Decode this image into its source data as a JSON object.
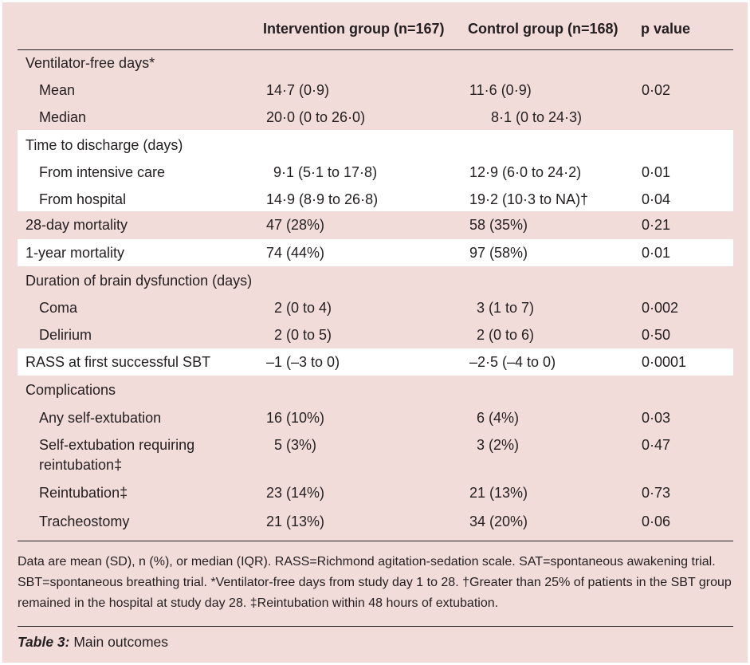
{
  "table": {
    "columns": [
      "",
      "Intervention group (n=167)",
      "Control group (n=168)",
      "p value"
    ],
    "rows": [
      {
        "label": "Ventilator-free days*",
        "intervention": "",
        "control": "",
        "p": ""
      },
      {
        "label": "Mean",
        "intervention": "14·7 (0·9)",
        "control": "11·6 (0·9)",
        "p": "0·02"
      },
      {
        "label": "Median",
        "intervention": "20·0 (0 to 26·0)",
        "control": "8·1 (0 to 24·3)",
        "p": ""
      },
      {
        "label": "Time to discharge (days)",
        "intervention": "",
        "control": "",
        "p": ""
      },
      {
        "label": "From intensive care",
        "intervention": "9·1 (5·1 to 17·8)",
        "control": "12·9 (6·0 to 24·2)",
        "p": "0·01"
      },
      {
        "label": "From hospital",
        "intervention": "14·9 (8·9 to 26·8)",
        "control": "19·2 (10·3 to NA)†",
        "p": "0·04"
      },
      {
        "label": "28-day mortality",
        "intervention": "47 (28%)",
        "control": "58 (35%)",
        "p": "0·21"
      },
      {
        "label": "1-year mortality",
        "intervention": "74 (44%)",
        "control": "97 (58%)",
        "p": "0·01"
      },
      {
        "label": "Duration of brain dysfunction (days)",
        "intervention": "",
        "control": "",
        "p": ""
      },
      {
        "label": "Coma",
        "intervention": "2 (0 to 4)",
        "control": "3 (1 to 7)",
        "p": "0·002"
      },
      {
        "label": "Delirium",
        "intervention": "2 (0 to 5)",
        "control": "2 (0 to 6)",
        "p": "0·50"
      },
      {
        "label": "RASS at first successful SBT",
        "intervention": "–1 (–3 to 0)",
        "control": "–2·5 (–4 to 0)",
        "p": "0·0001"
      },
      {
        "label": "Complications",
        "intervention": "",
        "control": "",
        "p": ""
      },
      {
        "label": "Any self-extubation",
        "intervention": "16 (10%)",
        "control": "6 (4%)",
        "p": "0·03"
      },
      {
        "label": "Self-extubation requiring",
        "label2": "reintubation‡",
        "intervention": "5 (3%)",
        "control": "3 (2%)",
        "p": "0·47"
      },
      {
        "label": "Reintubation‡",
        "intervention": "23 (14%)",
        "control": "21 (13%)",
        "p": "0·73"
      },
      {
        "label": "Tracheostomy",
        "intervention": "21 (13%)",
        "control": "34 (20%)",
        "p": "0·06"
      }
    ]
  },
  "footnote": "Data are mean (SD), n (%), or median (IQR). RASS=Richmond agitation-sedation scale. SAT=spontaneous awakening trial. SBT=spontaneous breathing trial. *Ventilator-free days from study day 1 to 28. †Greater than 25% of patients in the SBT group remained in the hospital at study day 28. ‡Reintubation within 48 hours of extubation.",
  "caption": {
    "label": "Table 3:",
    "text": " Main outcomes"
  },
  "colors": {
    "panel": "#f2dcda",
    "highlight": "#ffffff",
    "text": "#231f20"
  }
}
